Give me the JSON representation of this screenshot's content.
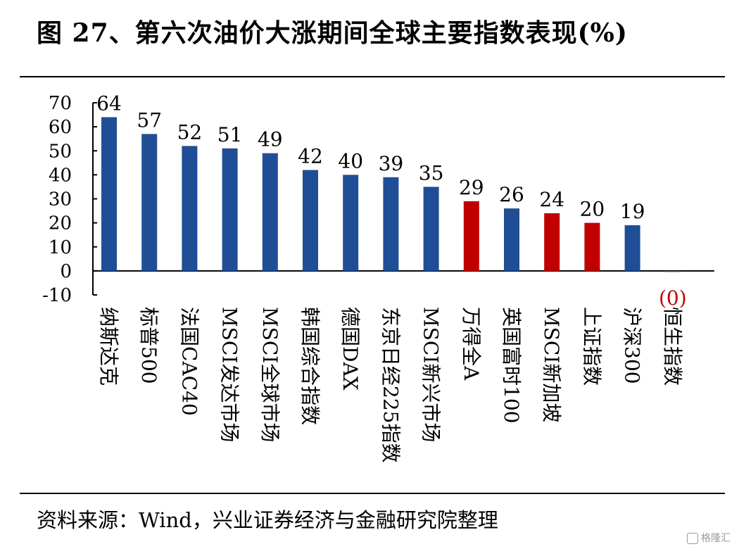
{
  "title": "图 27、第六次油价大涨期间全球主要指数表现(%)",
  "source": "资料来源：Wind，兴业证券经济与金融研究院整理",
  "watermark": "格隆汇",
  "colors": {
    "blue": "#1F4E96",
    "red": "#C00000",
    "neg_label": "#C00000",
    "axis": "#000000"
  },
  "chart_data": {
    "type": "bar",
    "title": "图 27、第六次油价大涨期间全球主要指数表现(%)",
    "xlabel": "",
    "ylabel": "",
    "ylim": [
      -10,
      70
    ],
    "yticks": [
      70,
      60,
      50,
      40,
      30,
      20,
      10,
      0,
      -10
    ],
    "grid": false,
    "legend": "none",
    "categories": [
      "纳斯达克",
      "标普500",
      "法国CAC40",
      "MSCI发达市场",
      "MSCI全球市场",
      "韩国综合指数",
      "德国DAX",
      "东京日经225指数",
      "MSCI新兴市场",
      "万得全A",
      "英国富时100",
      "MSCI新加坡",
      "上证指数",
      "沪深300",
      "恒生指数"
    ],
    "values": [
      64,
      57,
      52,
      51,
      49,
      42,
      40,
      39,
      35,
      29,
      26,
      24,
      20,
      19,
      -0.4
    ],
    "data_labels": [
      "64",
      "57",
      "52",
      "51",
      "49",
      "42",
      "40",
      "39",
      "35",
      "29",
      "26",
      "24",
      "20",
      "19",
      "(0)"
    ],
    "bar_colors": [
      "blue",
      "blue",
      "blue",
      "blue",
      "blue",
      "blue",
      "blue",
      "blue",
      "blue",
      "red",
      "blue",
      "red",
      "red",
      "blue",
      "blue"
    ]
  }
}
